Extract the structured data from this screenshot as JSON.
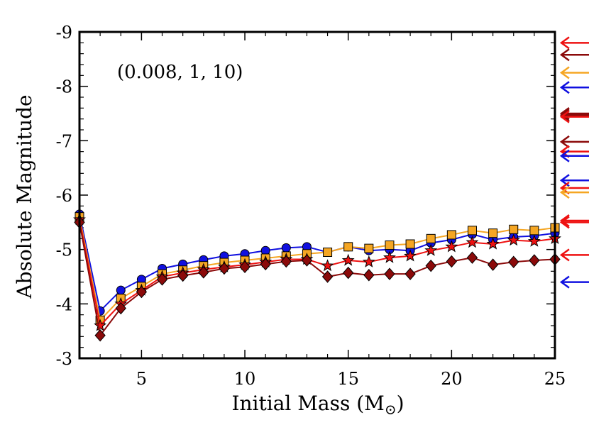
{
  "chart_data": {
    "type": "line",
    "title": "",
    "annotation": "(0.008, 1, 10)",
    "xlabel": "Initial Mass (M",
    "xlabel_symbol": "⊙",
    "xlabel_close": ")",
    "ylabel": "Absolute Magnitude",
    "xlim": [
      2,
      25
    ],
    "ylim": [
      -3,
      -9
    ],
    "x_ticks": [
      5,
      10,
      15,
      20,
      25
    ],
    "x_tick_labels": [
      "5",
      "10",
      "15",
      "20",
      "25"
    ],
    "y_ticks": [
      -3,
      -4,
      -5,
      -6,
      -7,
      -8,
      -9
    ],
    "y_tick_labels": [
      "-3",
      "-4",
      "-5",
      "-6",
      "-7",
      "-8",
      "-9"
    ],
    "x": [
      2,
      3,
      4,
      5,
      6,
      7,
      8,
      9,
      10,
      11,
      12,
      13,
      14,
      15,
      16,
      17,
      18,
      19,
      20,
      21,
      22,
      23,
      24,
      25
    ],
    "series": [
      {
        "name": "blue-circles",
        "color": "#1010e0",
        "marker": "circle",
        "values": [
          -5.65,
          -3.87,
          -4.25,
          -4.45,
          -4.65,
          -4.73,
          -4.81,
          -4.88,
          -4.92,
          -4.98,
          -5.03,
          -5.05,
          -4.95,
          -5.05,
          -4.98,
          -5.0,
          -4.98,
          -5.12,
          -5.18,
          -5.28,
          -5.18,
          -5.23,
          -5.25,
          -5.3
        ]
      },
      {
        "name": "orange-squares",
        "color": "#f5a623",
        "marker": "square",
        "values": [
          -5.6,
          -3.7,
          -4.1,
          -4.32,
          -4.55,
          -4.62,
          -4.7,
          -4.76,
          -4.8,
          -4.84,
          -4.88,
          -4.92,
          -4.95,
          -5.05,
          -5.02,
          -5.08,
          -5.1,
          -5.2,
          -5.27,
          -5.35,
          -5.3,
          -5.37,
          -5.35,
          -5.4
        ]
      },
      {
        "name": "red-stars",
        "color": "#ee1111",
        "marker": "star",
        "values": [
          -5.55,
          -3.6,
          -4.0,
          -4.25,
          -4.5,
          -4.57,
          -4.63,
          -4.68,
          -4.72,
          -4.77,
          -4.82,
          -4.82,
          -4.7,
          -4.8,
          -4.77,
          -4.85,
          -4.88,
          -4.98,
          -5.05,
          -5.13,
          -5.1,
          -5.17,
          -5.15,
          -5.2
        ]
      },
      {
        "name": "darkred-diamonds",
        "color": "#8b0a0a",
        "marker": "diamond",
        "values": [
          -5.5,
          -3.42,
          -3.92,
          -4.22,
          -4.45,
          -4.52,
          -4.58,
          -4.65,
          -4.68,
          -4.73,
          -4.78,
          -4.8,
          -4.5,
          -4.57,
          -4.53,
          -4.55,
          -4.55,
          -4.7,
          -4.78,
          -4.85,
          -4.72,
          -4.77,
          -4.8,
          -4.82
        ]
      }
    ],
    "arrows": [
      {
        "value": -8.8,
        "color": "#ee1111"
      },
      {
        "value": -8.58,
        "color": "#8b0a0a"
      },
      {
        "value": -8.25,
        "color": "#f5a623"
      },
      {
        "value": -7.98,
        "color": "#1010e0"
      },
      {
        "value": -7.5,
        "color": "#8b0a0a"
      },
      {
        "value": -7.47,
        "color": "#8b0a0a"
      },
      {
        "value": -7.44,
        "color": "#ee1111"
      },
      {
        "value": -6.98,
        "color": "#8b0a0a"
      },
      {
        "value": -6.8,
        "color": "#ee1111"
      },
      {
        "value": -6.72,
        "color": "#1010e0"
      },
      {
        "value": -6.27,
        "color": "#1010e0"
      },
      {
        "value": -6.13,
        "color": "#ee1111"
      },
      {
        "value": -6.05,
        "color": "#f5a623"
      },
      {
        "value": -5.53,
        "color": "#ee1111"
      },
      {
        "value": -5.5,
        "color": "#ee1111"
      },
      {
        "value": -4.9,
        "color": "#ee1111"
      },
      {
        "value": -4.4,
        "color": "#1010e0"
      }
    ]
  }
}
